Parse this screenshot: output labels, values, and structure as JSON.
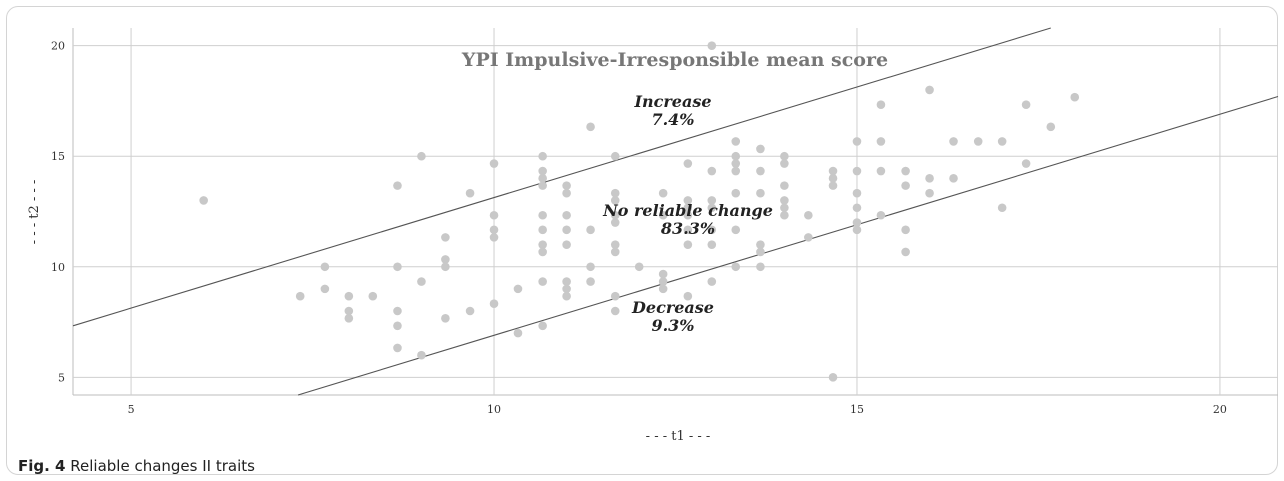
{
  "chart_data": {
    "type": "scatter",
    "title": "YPI Impulsive-Irresponsible mean score",
    "xlabel": "- - - t1 - - -",
    "ylabel": "- - - t2 - - -",
    "xlim": [
      4.2,
      20.8
    ],
    "ylim": [
      4.2,
      20.8
    ],
    "xticks": [
      5,
      10,
      15,
      20
    ],
    "yticks": [
      5,
      10,
      15,
      20
    ],
    "grid": true,
    "annotations": [
      {
        "label": "Increase",
        "value": "7.4%"
      },
      {
        "label": "No reliable change",
        "value": "83.3%"
      },
      {
        "label": "Decrease",
        "value": "9.3%"
      }
    ],
    "bands": [
      {
        "name": "upper",
        "intercept": 3.13,
        "slope": 1
      },
      {
        "name": "lower",
        "intercept": -3.1,
        "slope": 1
      }
    ],
    "points": [
      [
        6.0,
        13.0
      ],
      [
        7.33,
        8.67
      ],
      [
        7.67,
        10.0
      ],
      [
        7.67,
        9.0
      ],
      [
        8.0,
        8.67
      ],
      [
        8.0,
        8.0
      ],
      [
        8.0,
        7.67
      ],
      [
        8.33,
        8.67
      ],
      [
        8.67,
        13.67
      ],
      [
        8.67,
        10.0
      ],
      [
        8.67,
        8.0
      ],
      [
        8.67,
        7.33
      ],
      [
        8.67,
        6.33
      ],
      [
        9.0,
        15.0
      ],
      [
        9.0,
        9.33
      ],
      [
        9.0,
        6.0
      ],
      [
        9.33,
        11.33
      ],
      [
        9.33,
        10.33
      ],
      [
        9.33,
        10.0
      ],
      [
        9.33,
        7.67
      ],
      [
        9.67,
        13.33
      ],
      [
        9.67,
        8.0
      ],
      [
        10.0,
        14.67
      ],
      [
        10.0,
        12.33
      ],
      [
        10.0,
        11.67
      ],
      [
        10.0,
        11.33
      ],
      [
        10.0,
        8.33
      ],
      [
        10.33,
        9.0
      ],
      [
        10.33,
        7.0
      ],
      [
        10.67,
        15.0
      ],
      [
        10.67,
        14.33
      ],
      [
        10.67,
        14.0
      ],
      [
        10.67,
        13.67
      ],
      [
        10.67,
        12.33
      ],
      [
        10.67,
        11.67
      ],
      [
        10.67,
        11.0
      ],
      [
        10.67,
        10.67
      ],
      [
        10.67,
        9.33
      ],
      [
        10.67,
        7.33
      ],
      [
        11.0,
        13.67
      ],
      [
        11.0,
        13.33
      ],
      [
        11.0,
        12.33
      ],
      [
        11.0,
        11.67
      ],
      [
        11.0,
        11.0
      ],
      [
        11.0,
        9.33
      ],
      [
        11.0,
        9.0
      ],
      [
        11.0,
        8.67
      ],
      [
        11.33,
        16.33
      ],
      [
        11.33,
        11.67
      ],
      [
        11.33,
        10.0
      ],
      [
        11.33,
        9.33
      ],
      [
        11.67,
        15.0
      ],
      [
        11.67,
        13.33
      ],
      [
        11.67,
        13.0
      ],
      [
        11.67,
        12.33
      ],
      [
        11.67,
        12.0
      ],
      [
        11.67,
        11.0
      ],
      [
        11.67,
        10.67
      ],
      [
        11.67,
        8.67
      ],
      [
        11.67,
        8.0
      ],
      [
        12.0,
        10.0
      ],
      [
        12.33,
        13.33
      ],
      [
        12.33,
        12.33
      ],
      [
        12.33,
        9.67
      ],
      [
        12.33,
        9.33
      ],
      [
        12.33,
        9.0
      ],
      [
        12.67,
        14.67
      ],
      [
        12.67,
        13.0
      ],
      [
        12.67,
        12.67
      ],
      [
        12.67,
        12.33
      ],
      [
        12.67,
        11.67
      ],
      [
        12.67,
        11.0
      ],
      [
        12.67,
        8.67
      ],
      [
        13.0,
        20.0
      ],
      [
        13.0,
        14.33
      ],
      [
        13.0,
        13.0
      ],
      [
        13.0,
        12.67
      ],
      [
        13.0,
        11.67
      ],
      [
        13.0,
        11.0
      ],
      [
        13.0,
        9.33
      ],
      [
        13.33,
        15.67
      ],
      [
        13.33,
        15.0
      ],
      [
        13.33,
        14.67
      ],
      [
        13.33,
        14.33
      ],
      [
        13.33,
        13.33
      ],
      [
        13.33,
        11.67
      ],
      [
        13.33,
        10.0
      ],
      [
        13.67,
        15.33
      ],
      [
        13.67,
        14.33
      ],
      [
        13.67,
        13.33
      ],
      [
        13.67,
        11.0
      ],
      [
        13.67,
        10.67
      ],
      [
        13.67,
        10.0
      ],
      [
        14.0,
        15.0
      ],
      [
        14.0,
        14.67
      ],
      [
        14.0,
        13.67
      ],
      [
        14.0,
        13.0
      ],
      [
        14.0,
        12.67
      ],
      [
        14.0,
        12.33
      ],
      [
        14.33,
        12.33
      ],
      [
        14.33,
        11.33
      ],
      [
        14.67,
        14.33
      ],
      [
        14.67,
        14.0
      ],
      [
        14.67,
        13.67
      ],
      [
        14.67,
        5.0
      ],
      [
        15.0,
        15.67
      ],
      [
        15.0,
        14.33
      ],
      [
        15.0,
        13.33
      ],
      [
        15.0,
        12.67
      ],
      [
        15.0,
        12.0
      ],
      [
        15.0,
        11.67
      ],
      [
        15.33,
        17.33
      ],
      [
        15.33,
        15.67
      ],
      [
        15.33,
        14.33
      ],
      [
        15.33,
        12.33
      ],
      [
        15.67,
        14.33
      ],
      [
        15.67,
        13.67
      ],
      [
        15.67,
        11.67
      ],
      [
        15.67,
        10.67
      ],
      [
        16.0,
        18.0
      ],
      [
        16.0,
        14.0
      ],
      [
        16.0,
        13.33
      ],
      [
        16.33,
        15.67
      ],
      [
        16.33,
        14.0
      ],
      [
        16.67,
        15.67
      ],
      [
        17.0,
        15.67
      ],
      [
        17.0,
        12.67
      ],
      [
        17.33,
        17.33
      ],
      [
        17.33,
        14.67
      ],
      [
        17.67,
        16.33
      ],
      [
        18.0,
        17.67
      ]
    ],
    "colors": {
      "point": "#c8c8c8",
      "grid": "#cfcfcf",
      "line": "#555555",
      "axis_text": "#333333",
      "title": "#777777"
    }
  },
  "caption": {
    "fig_label": "Fig. 4",
    "text": "Reliable changes II traits"
  }
}
